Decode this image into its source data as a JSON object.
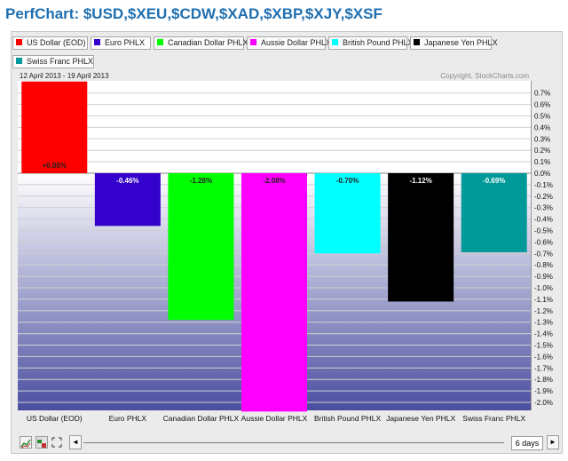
{
  "page": {
    "title": "PerfChart: $USD,$XEU,$CDW,$XAD,$XBP,$XJY,$XSF",
    "date_range": "12 April 2013 - 19 April 2013",
    "copyright": "Copyright, StockCharts.com",
    "period_label": "6 days",
    "left_arrow": "◄",
    "right_arrow": "►"
  },
  "legend": [
    {
      "label": "US Dollar (EOD)",
      "color": "#ff0000"
    },
    {
      "label": "Euro PHLX",
      "color": "#3300cc"
    },
    {
      "label": "Canadian Dollar PHLX",
      "color": "#00ff00"
    },
    {
      "label": "Aussie Dollar PHLX",
      "color": "#ff00ff"
    },
    {
      "label": "British Pound PHLX",
      "color": "#00ffff"
    },
    {
      "label": "Japanese Yen PHLX",
      "color": "#000000"
    },
    {
      "label": "Swiss Franc PHLX",
      "color": "#009999"
    }
  ],
  "chart_data": {
    "type": "bar",
    "categories": [
      "US Dollar (EOD)",
      "Euro PHLX",
      "Canadian Dollar PHLX",
      "Aussie Dollar PHLX",
      "British Pound PHLX",
      "Japanese Yen PHLX",
      "Swiss Franc PHLX"
    ],
    "values": [
      0.8,
      -0.46,
      -1.28,
      -2.08,
      -0.7,
      -1.12,
      -0.69
    ],
    "data_labels": [
      "+0.80%",
      "-0.46%",
      "-1.28%",
      "-2.08%",
      "-0.70%",
      "-1.12%",
      "-0.69%"
    ],
    "colors": [
      "#ff0000",
      "#3300cc",
      "#00ff00",
      "#ff00ff",
      "#00ffff",
      "#000000",
      "#009999"
    ],
    "label_colors": [
      "#222222",
      "#ffffff",
      "#222222",
      "#222222",
      "#222222",
      "#ffffff",
      "#ffffff"
    ],
    "ylim": [
      -2.05,
      0.75
    ],
    "yticks": [
      0.7,
      0.6,
      0.5,
      0.4,
      0.3,
      0.2,
      0.1,
      0.0,
      -0.1,
      -0.2,
      -0.3,
      -0.4,
      -0.5,
      -0.6,
      -0.7,
      -0.8,
      -0.9,
      -1.0,
      -1.1,
      -1.2,
      -1.3,
      -1.4,
      -1.5,
      -1.6,
      -1.7,
      -1.8,
      -1.9,
      -2.0
    ],
    "ytick_labels": [
      "0.7%",
      "0.6%",
      "0.5%",
      "0.4%",
      "0.3%",
      "0.2%",
      "0.1%",
      "0.0%",
      "-0.1%",
      "-0.2%",
      "-0.3%",
      "-0.4%",
      "-0.5%",
      "-0.6%",
      "-0.7%",
      "-0.8%",
      "-0.9%",
      "-1.0%",
      "-1.1%",
      "-1.2%",
      "-1.3%",
      "-1.4%",
      "-1.5%",
      "-1.6%",
      "-1.7%",
      "-1.8%",
      "-1.9%",
      "-2.0%"
    ],
    "title": "",
    "xlabel": "",
    "ylabel": "",
    "grid": true,
    "legend_position": "top"
  }
}
